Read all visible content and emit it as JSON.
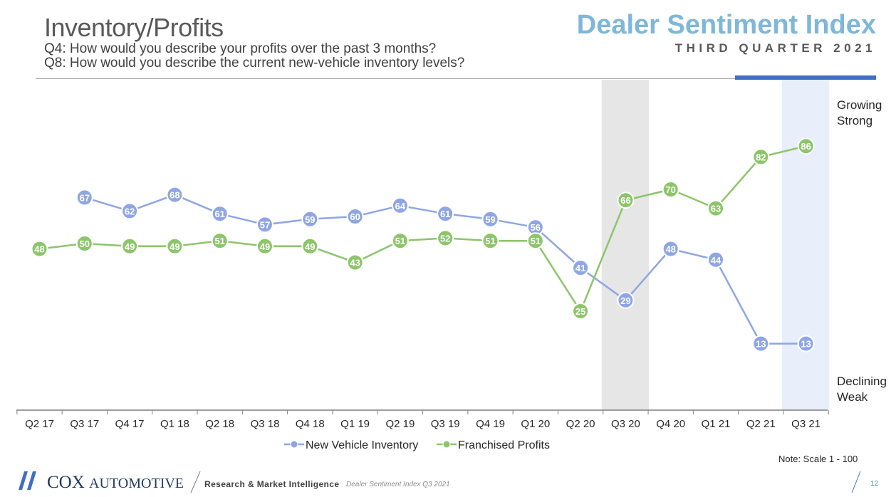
{
  "header": {
    "title": "Inventory/Profits",
    "question_q4": "Q4: How would you describe your profits over the past 3 months?",
    "question_q8": "Q8: How would you describe the current new-vehicle inventory levels?",
    "brand_title": "Dealer Sentiment Index",
    "brand_subtitle": "THIRD QUARTER 2021"
  },
  "chart_data": {
    "type": "line",
    "categories": [
      "Q2 17",
      "Q3 17",
      "Q4 17",
      "Q1 18",
      "Q2 18",
      "Q3 18",
      "Q4 18",
      "Q1 19",
      "Q2 19",
      "Q3 19",
      "Q4 19",
      "Q1 20",
      "Q2 20",
      "Q3 20",
      "Q4 20",
      "Q1 21",
      "Q2 21",
      "Q3 21"
    ],
    "series": [
      {
        "name": "New Vehicle Inventory",
        "color": "#8fa6e4",
        "values": [
          null,
          67,
          62,
          68,
          61,
          57,
          59,
          60,
          64,
          61,
          59,
          56,
          41,
          29,
          48,
          44,
          13,
          13
        ]
      },
      {
        "name": "Franchised Profits",
        "color": "#8cc56a",
        "values": [
          48,
          50,
          49,
          49,
          51,
          49,
          49,
          43,
          51,
          52,
          51,
          51,
          25,
          66,
          70,
          63,
          82,
          86
        ]
      }
    ],
    "ylim": [
      0,
      100
    ],
    "grid": false,
    "legend": "bottom-center",
    "highlight": [
      {
        "category": "Q3 20",
        "color": "#e6e6e6"
      },
      {
        "category": "Q3 21",
        "color": "#e8effb"
      }
    ],
    "top_label": [
      "Growing",
      "Strong"
    ],
    "bottom_label": [
      "Declining",
      "Weak"
    ]
  },
  "note": "Note: Scale 1 - 100",
  "footer": {
    "logo_cox": "COX",
    "logo_automotive": "AUTOMOTIVE",
    "research": "Research & Market Intelligence",
    "report": "Dealer Sentiment Index Q3 2021",
    "page": "12"
  }
}
